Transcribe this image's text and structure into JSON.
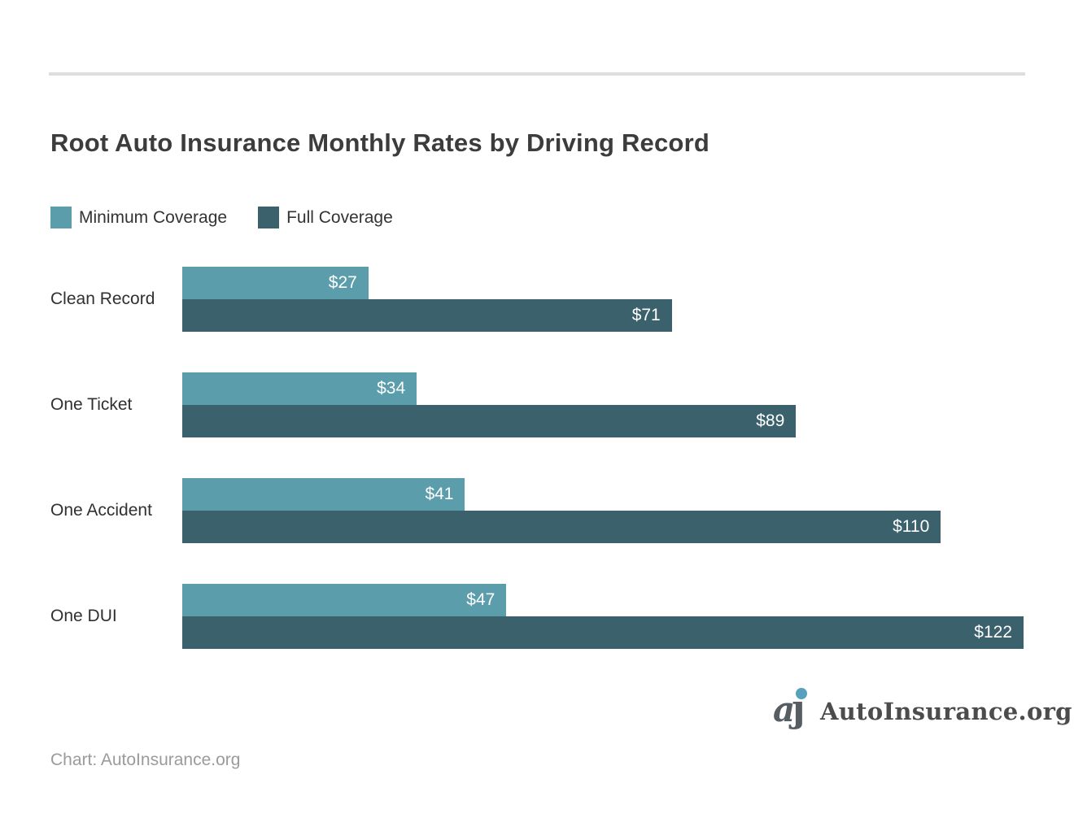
{
  "header": {
    "title": "Root Auto Insurance Monthly Rates by Driving Record"
  },
  "chart_data": {
    "type": "bar",
    "orientation": "horizontal",
    "title": "Root Auto Insurance Monthly Rates by Driving Record",
    "categories": [
      "Clean Record",
      "One Ticket",
      "One Accident",
      "One DUI"
    ],
    "series": [
      {
        "name": "Minimum Coverage",
        "color": "#5b9dab",
        "values": [
          27,
          34,
          41,
          47
        ],
        "labels": [
          "$27",
          "$34",
          "$41",
          "$47"
        ]
      },
      {
        "name": "Full Coverage",
        "color": "#3a616c",
        "values": [
          71,
          89,
          110,
          122
        ],
        "labels": [
          "$71",
          "$89",
          "$110",
          "$122"
        ]
      }
    ],
    "value_prefix": "$",
    "xlim": [
      0,
      122
    ],
    "grid": false,
    "legend_position": "top-left",
    "value_labels": "inside-end"
  },
  "legend": {
    "items": [
      {
        "label": "Minimum Coverage",
        "color": "#5b9dab"
      },
      {
        "label": "Full Coverage",
        "color": "#3a616c"
      }
    ]
  },
  "footer": {
    "credit": "Chart: AutoInsurance.org",
    "logo_text": "AutoInsurance.org",
    "logo_accent": "#57a1bd"
  }
}
